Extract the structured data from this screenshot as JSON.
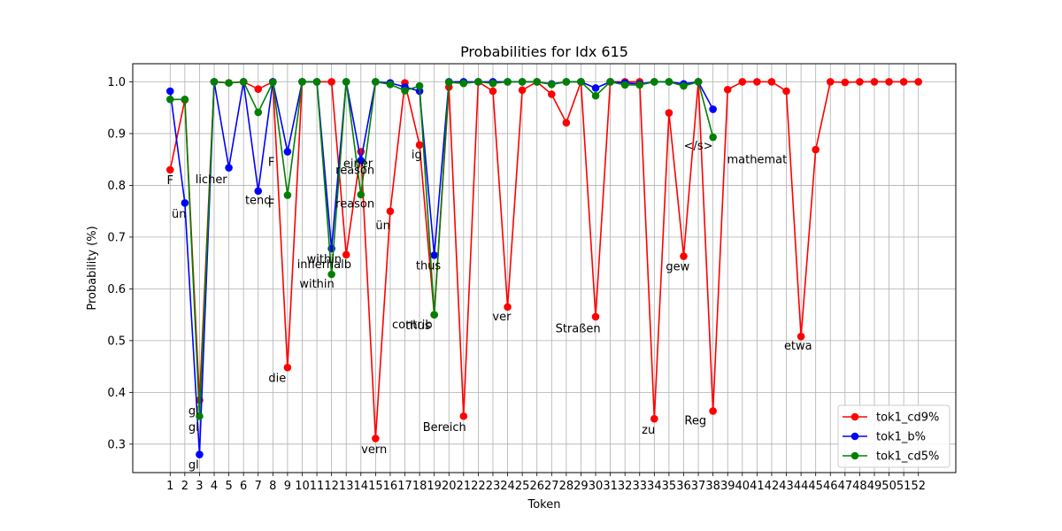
{
  "chart_data": {
    "type": "line",
    "title": "Probabilities for Idx 615",
    "xlabel": "Token",
    "ylabel": "Probability (%)",
    "ylim": [
      0.245,
      1.035
    ],
    "yticks": [
      0.3,
      0.4,
      0.5,
      0.6,
      0.7,
      0.8,
      0.9,
      1.0
    ],
    "ytick_labels": [
      "0.3",
      "0.4",
      "0.5",
      "0.6",
      "0.7",
      "0.8",
      "0.9",
      "1.0"
    ],
    "xtick_labels": [
      "1",
      "2",
      "3",
      "4",
      "5",
      "6",
      "7",
      "8",
      "9",
      "10",
      "11",
      "12",
      "13",
      "14",
      "15",
      "16",
      "17",
      "18",
      "19",
      "20",
      "21",
      "22",
      "23",
      "24",
      "25",
      "26",
      "27",
      "28",
      "29",
      "30",
      "31",
      "32",
      "33",
      "34",
      "35",
      "36",
      "37",
      "38",
      "39",
      "40",
      "41",
      "42",
      "43",
      "44",
      "45",
      "46",
      "47",
      "48",
      "49",
      "50",
      "51",
      "52"
    ],
    "grid": true,
    "legend_position": "bottom-right",
    "series": [
      {
        "name": "tok1_cd9%",
        "color": "#ff0000",
        "x": [
          1,
          2,
          3,
          4,
          5,
          6,
          7,
          8,
          9,
          10,
          11,
          12,
          13,
          14,
          15,
          16,
          17,
          18,
          19,
          20,
          21,
          22,
          23,
          24,
          25,
          26,
          27,
          28,
          29,
          30,
          31,
          32,
          33,
          34,
          35,
          36,
          37,
          38,
          39,
          40,
          41,
          42,
          43,
          44,
          45,
          46,
          47,
          48,
          49,
          50,
          51,
          52
        ],
        "values": [
          0.83,
          0.965,
          0.385,
          1.0,
          0.998,
          1.0,
          0.986,
          1.0,
          0.448,
          1.0,
          1.0,
          1.0,
          0.666,
          0.865,
          0.311,
          0.75,
          0.998,
          0.878,
          0.55,
          0.99,
          0.354,
          1.0,
          0.982,
          0.565,
          0.984,
          1.0,
          0.976,
          0.921,
          1.0,
          0.546,
          1.0,
          1.0,
          1.0,
          0.349,
          0.94,
          0.663,
          1.0,
          0.364,
          0.985,
          1.0,
          1.0,
          1.0,
          0.982,
          0.508,
          0.869,
          1.0,
          0.999,
          1.0,
          1.0,
          1.0,
          1.0,
          1.0
        ]
      },
      {
        "name": "tok1_b%",
        "color": "#0000ff",
        "x": [
          1,
          2,
          3,
          4,
          5,
          6,
          7,
          8,
          9,
          10,
          11,
          12,
          13,
          14,
          15,
          16,
          17,
          18,
          19,
          20,
          21,
          22,
          23,
          24,
          25,
          26,
          27,
          28,
          29,
          30,
          31,
          32,
          33,
          34,
          35,
          36,
          37,
          38
        ],
        "values": [
          0.982,
          0.766,
          0.28,
          1.0,
          0.834,
          1.0,
          0.789,
          1.0,
          0.865,
          1.0,
          1.0,
          0.678,
          1.0,
          0.848,
          1.0,
          0.998,
          0.99,
          0.982,
          0.665,
          1.0,
          1.0,
          1.0,
          1.0,
          1.0,
          1.0,
          1.0,
          0.996,
          1.0,
          1.0,
          0.988,
          1.0,
          0.998,
          0.996,
          1.0,
          1.0,
          0.996,
          1.0,
          0.947
        ]
      },
      {
        "name": "tok1_cd5%",
        "color": "#008000",
        "x": [
          1,
          2,
          3,
          4,
          5,
          6,
          7,
          8,
          9,
          10,
          11,
          12,
          13,
          14,
          15,
          16,
          17,
          18,
          19,
          20,
          21,
          22,
          23,
          24,
          25,
          26,
          27,
          28,
          29,
          30,
          31,
          32,
          33,
          34,
          35,
          36,
          37,
          38
        ],
        "values": [
          0.966,
          0.966,
          0.354,
          1.0,
          0.998,
          1.0,
          0.941,
          0.999,
          0.781,
          1.0,
          1.0,
          0.628,
          1.0,
          0.782,
          1.0,
          0.995,
          0.983,
          0.992,
          0.55,
          0.999,
          0.997,
          1.0,
          0.997,
          1.0,
          1.0,
          1.0,
          0.995,
          1.0,
          1.0,
          0.973,
          1.0,
          0.994,
          0.994,
          1.0,
          1.0,
          0.992,
          1.0,
          0.893
        ]
      }
    ],
    "annotations": [
      {
        "text": "F",
        "x": 1,
        "y": 0.81
      },
      {
        "text": "ün",
        "x": 1.6,
        "y": 0.745
      },
      {
        "text": "gl",
        "x": 2.6,
        "y": 0.365
      },
      {
        "text": "gl",
        "x": 2.6,
        "y": 0.333
      },
      {
        "text": "gl",
        "x": 2.6,
        "y": 0.26
      },
      {
        "text": "licher",
        "x": 3.8,
        "y": 0.812
      },
      {
        "text": "tend",
        "x": 7,
        "y": 0.772
      },
      {
        "text": "F",
        "x": 7.9,
        "y": 0.845
      },
      {
        "text": "F",
        "x": 7.9,
        "y": 0.765
      },
      {
        "text": "die",
        "x": 8.3,
        "y": 0.428
      },
      {
        "text": "within",
        "x": 11.5,
        "y": 0.658
      },
      {
        "text": "innerhalb",
        "x": 11.5,
        "y": 0.648
      },
      {
        "text": "within",
        "x": 11.0,
        "y": 0.61
      },
      {
        "text": "einer",
        "x": 13.8,
        "y": 0.843
      },
      {
        "text": "reason",
        "x": 13.6,
        "y": 0.83
      },
      {
        "text": "reason",
        "x": 13.6,
        "y": 0.765
      },
      {
        "text": "ün",
        "x": 15.5,
        "y": 0.723
      },
      {
        "text": "vern",
        "x": 14.9,
        "y": 0.29
      },
      {
        "text": "ig",
        "x": 17.8,
        "y": 0.86
      },
      {
        "text": "thus",
        "x": 18.6,
        "y": 0.645
      },
      {
        "text": "contrib",
        "x": 17.5,
        "y": 0.531
      },
      {
        "text": "thus",
        "x": 17.9,
        "y": 0.53
      },
      {
        "text": "Bereich",
        "x": 19.7,
        "y": 0.333
      },
      {
        "text": "ver",
        "x": 23.6,
        "y": 0.547
      },
      {
        "text": "Straßen",
        "x": 28.8,
        "y": 0.524
      },
      {
        "text": "zu",
        "x": 33.6,
        "y": 0.328
      },
      {
        "text": "gew",
        "x": 35.6,
        "y": 0.643
      },
      {
        "text": "</s>",
        "x": 37,
        "y": 0.877
      },
      {
        "text": "Reg",
        "x": 36.8,
        "y": 0.346
      },
      {
        "text": "mathemat",
        "x": 41,
        "y": 0.85
      },
      {
        "text": "etwa",
        "x": 43.8,
        "y": 0.49
      }
    ]
  }
}
